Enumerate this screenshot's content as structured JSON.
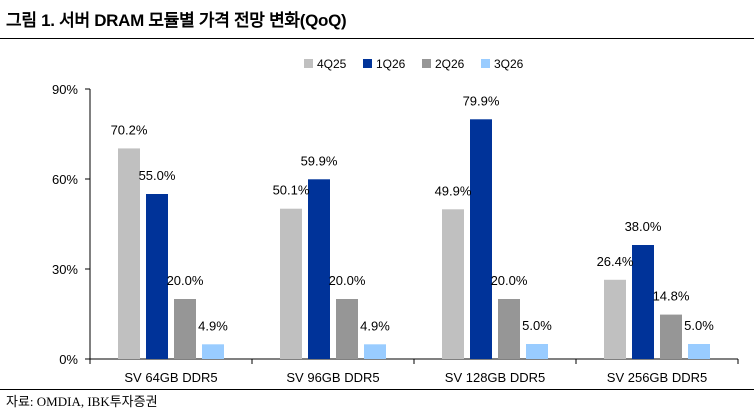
{
  "figure": {
    "title": "그림 1. 서버 DRAM 모듈별 가격 전망 변화(QoQ)",
    "source": "자료: OMDIA, IBK투자증권"
  },
  "chart_data": {
    "type": "bar",
    "categories": [
      "SV 64GB DDR5",
      "SV 96GB DDR5",
      "SV 128GB DDR5",
      "SV 256GB DDR5"
    ],
    "series": [
      {
        "name": "4Q25",
        "color": "#c0c0c0",
        "values": [
          70.2,
          50.1,
          49.9,
          26.4
        ],
        "labels": [
          "70.2%",
          "50.1%",
          "49.9%",
          "26.4%"
        ]
      },
      {
        "name": "1Q26",
        "color": "#003399",
        "values": [
          55.0,
          59.9,
          79.9,
          38.0
        ],
        "labels": [
          "55.0%",
          "59.9%",
          "79.9%",
          "38.0%"
        ]
      },
      {
        "name": "2Q26",
        "color": "#969696",
        "values": [
          20.0,
          20.0,
          20.0,
          14.8
        ],
        "labels": [
          "20.0%",
          "20.0%",
          "20.0%",
          "14.8%"
        ]
      },
      {
        "name": "3Q26",
        "color": "#99ccff",
        "values": [
          4.9,
          4.9,
          5.0,
          5.0
        ],
        "labels": [
          "4.9%",
          "4.9%",
          "5.0%",
          "5.0%"
        ]
      }
    ],
    "yticks": [
      0,
      30,
      60,
      90
    ],
    "ytick_labels": [
      "0%",
      "30%",
      "60%",
      "90%"
    ],
    "ylim": [
      0,
      90
    ],
    "legend": "top-center",
    "grid": false
  }
}
